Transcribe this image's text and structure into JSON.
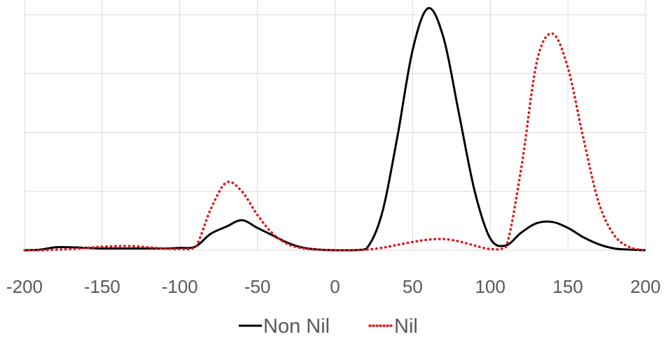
{
  "chart_data": {
    "type": "line",
    "title": "",
    "xlabel": "",
    "ylabel": "",
    "xlim": [
      -200,
      200
    ],
    "ylim": [
      0,
      4.25
    ],
    "grid": true,
    "legend_position": "bottom",
    "x_ticks": [
      "-200",
      "-150",
      "-100",
      "-50",
      "0",
      "50",
      "100",
      "150",
      "200"
    ],
    "x": [
      -200,
      -190,
      -180,
      -170,
      -160,
      -150,
      -140,
      -130,
      -120,
      -110,
      -100,
      -90,
      -80,
      -70,
      -60,
      -50,
      -40,
      -30,
      -20,
      -10,
      0,
      10,
      20,
      30,
      40,
      50,
      60,
      70,
      80,
      90,
      100,
      110,
      120,
      130,
      140,
      150,
      160,
      170,
      180,
      190,
      200
    ],
    "series": [
      {
        "name": "Non Nil",
        "color": "#000000",
        "style": "solid",
        "values": [
          0,
          0.01,
          0.05,
          0.05,
          0.04,
          0.03,
          0.03,
          0.03,
          0.03,
          0.03,
          0.04,
          0.06,
          0.28,
          0.4,
          0.51,
          0.38,
          0.25,
          0.12,
          0.04,
          0.01,
          0,
          0,
          0.02,
          0.6,
          1.9,
          3.4,
          4.11,
          3.6,
          2.3,
          1.0,
          0.2,
          0.08,
          0.3,
          0.46,
          0.48,
          0.38,
          0.22,
          0.1,
          0.03,
          0.01,
          0
        ]
      },
      {
        "name": "Nil",
        "color": "#e0161b",
        "style": "dotted",
        "values": [
          0,
          0,
          0.01,
          0.02,
          0.04,
          0.06,
          0.07,
          0.07,
          0.05,
          0.03,
          0.02,
          0.05,
          0.7,
          1.15,
          1.0,
          0.6,
          0.28,
          0.1,
          0.03,
          0.01,
          0,
          0,
          0.01,
          0.04,
          0.09,
          0.14,
          0.18,
          0.19,
          0.15,
          0.08,
          0.02,
          0.05,
          1.4,
          3.2,
          3.68,
          3.1,
          1.9,
          0.8,
          0.25,
          0.05,
          0
        ]
      }
    ]
  }
}
